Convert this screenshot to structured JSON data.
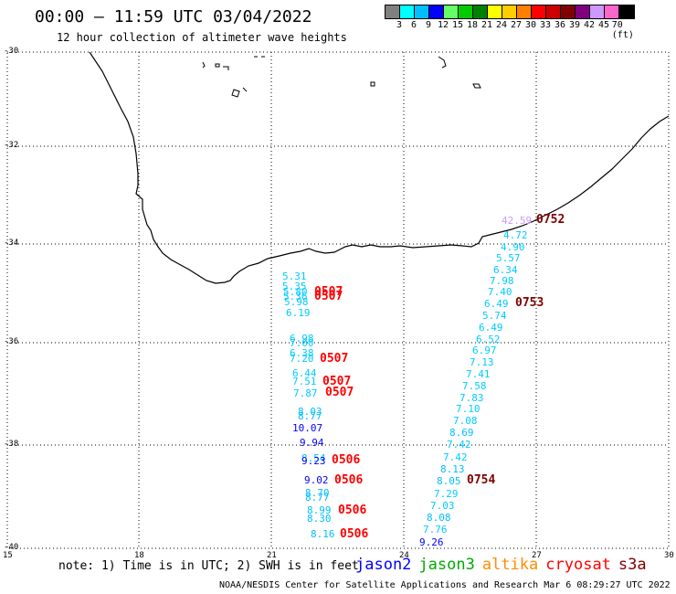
{
  "header": {
    "title": "00:00 – 11:59 UTC 03/04/2022",
    "subtitle": "12 hour collection of altimeter wave heights"
  },
  "legend": {
    "colors": [
      "#808080",
      "#00ffff",
      "#00bfff",
      "#0000ff",
      "#66ff66",
      "#00cc00",
      "#008000",
      "#ffff00",
      "#ffcc00",
      "#ff8000",
      "#ff0000",
      "#cc0000",
      "#800000",
      "#800080",
      "#cc99ff",
      "#ff66cc",
      "#000000"
    ],
    "labels": [
      "3",
      "6",
      "9",
      "12",
      "15",
      "18",
      "21",
      "24",
      "27",
      "30",
      "33",
      "36",
      "39",
      "42",
      "45",
      "70 (ft)"
    ]
  },
  "axes": {
    "x_ticks": [
      "15",
      "18",
      "21",
      "24",
      "27",
      "30"
    ],
    "y_ticks": [
      "-30",
      "-32",
      "-34",
      "-36",
      "-38",
      "-40"
    ]
  },
  "observations": [
    {
      "text": "5.31",
      "color": "#00ccff"
    },
    {
      "text": "5.35",
      "color": "#00ccff"
    },
    {
      "text": "5.80",
      "color": "#00ccff"
    },
    {
      "text": "5.36",
      "color": "#00ccff"
    },
    {
      "text": "5.98",
      "color": "#00ccff"
    },
    {
      "text": "6.19",
      "color": "#00ccff"
    },
    {
      "text": "6.98",
      "color": "#00ccff"
    },
    {
      "text": "7.00",
      "color": "#00ccff"
    },
    {
      "text": "6.38",
      "color": "#00ccff"
    },
    {
      "text": "7.20",
      "color": "#00ccff"
    },
    {
      "text": "6.44",
      "color": "#00ccff"
    },
    {
      "text": "7.51",
      "color": "#00ccff"
    },
    {
      "text": "7.87",
      "color": "#00ccff"
    },
    {
      "text": "8.03",
      "color": "#00bfff"
    },
    {
      "text": "8.77",
      "color": "#00bfff"
    },
    {
      "text": "10.07",
      "color": "#0000ff"
    },
    {
      "text": "9.94",
      "color": "#0000ff"
    },
    {
      "text": "8.54",
      "color": "#00bfff"
    },
    {
      "text": "9.23",
      "color": "#0000ff"
    },
    {
      "text": "9.02",
      "color": "#0000ff"
    },
    {
      "text": "8.70",
      "color": "#00bfff"
    },
    {
      "text": "8.77",
      "color": "#00bfff"
    },
    {
      "text": "8.99",
      "color": "#00bfff"
    },
    {
      "text": "8.30",
      "color": "#00bfff"
    },
    {
      "text": "8.16",
      "color": "#00bfff"
    },
    {
      "text": "42.59",
      "color": "#cc99ff"
    },
    {
      "text": "4.72",
      "color": "#00ccff"
    },
    {
      "text": "4.90",
      "color": "#00ccff"
    },
    {
      "text": "5.57",
      "color": "#00ccff"
    },
    {
      "text": "6.34",
      "color": "#00ccff"
    },
    {
      "text": "7.98",
      "color": "#00ccff"
    },
    {
      "text": "7.40",
      "color": "#00ccff"
    },
    {
      "text": "6.49",
      "color": "#00ccff"
    },
    {
      "text": "5.74",
      "color": "#00ccff"
    },
    {
      "text": "6.49",
      "color": "#00ccff"
    },
    {
      "text": "6.52",
      "color": "#00ccff"
    },
    {
      "text": "6.97",
      "color": "#00ccff"
    },
    {
      "text": "7.13",
      "color": "#00ccff"
    },
    {
      "text": "7.41",
      "color": "#00ccff"
    },
    {
      "text": "7.58",
      "color": "#00ccff"
    },
    {
      "text": "7.83",
      "color": "#00ccff"
    },
    {
      "text": "7.10",
      "color": "#00ccff"
    },
    {
      "text": "7.08",
      "color": "#00ccff"
    },
    {
      "text": "8.69",
      "color": "#00bfff"
    },
    {
      "text": "7.42",
      "color": "#00ccff"
    },
    {
      "text": "7.42",
      "color": "#00ccff"
    },
    {
      "text": "8.13",
      "color": "#00bfff"
    },
    {
      "text": "8.05",
      "color": "#00bfff"
    },
    {
      "text": "7.29",
      "color": "#00ccff"
    },
    {
      "text": "7.03",
      "color": "#00ccff"
    },
    {
      "text": "8.08",
      "color": "#00bfff"
    },
    {
      "text": "7.76",
      "color": "#00ccff"
    },
    {
      "text": "9.26",
      "color": "#0000ff"
    }
  ],
  "pass_labels": [
    {
      "text": "0507",
      "color": "#ff0000"
    },
    {
      "text": "0507",
      "color": "#ff0000"
    },
    {
      "text": "0507",
      "color": "#ff0000"
    },
    {
      "text": "0507",
      "color": "#ff0000"
    },
    {
      "text": "0507",
      "color": "#ff0000"
    },
    {
      "text": "0506",
      "color": "#ff0000"
    },
    {
      "text": "0506",
      "color": "#ff0000"
    },
    {
      "text": "0506",
      "color": "#ff0000"
    },
    {
      "text": "0506",
      "color": "#ff0000"
    },
    {
      "text": "0752",
      "color": "#800000"
    },
    {
      "text": "0753",
      "color": "#800000"
    },
    {
      "text": "0754",
      "color": "#800000"
    }
  ],
  "footer": {
    "note": "note: 1) Time is in UTC; 2) SWH is in feet",
    "satellites": [
      {
        "name": "jason2",
        "color": "#0000ff"
      },
      {
        "name": "jason3",
        "color": "#00aa00"
      },
      {
        "name": "altika",
        "color": "#ff8c00"
      },
      {
        "name": "cryosat",
        "color": "#ff0000"
      },
      {
        "name": "s3a",
        "color": "#800000"
      }
    ],
    "credit": "NOAA/NESDIS Center for Satellite Applications and Research   Mar  6 08:29:27 UTC 2022"
  }
}
